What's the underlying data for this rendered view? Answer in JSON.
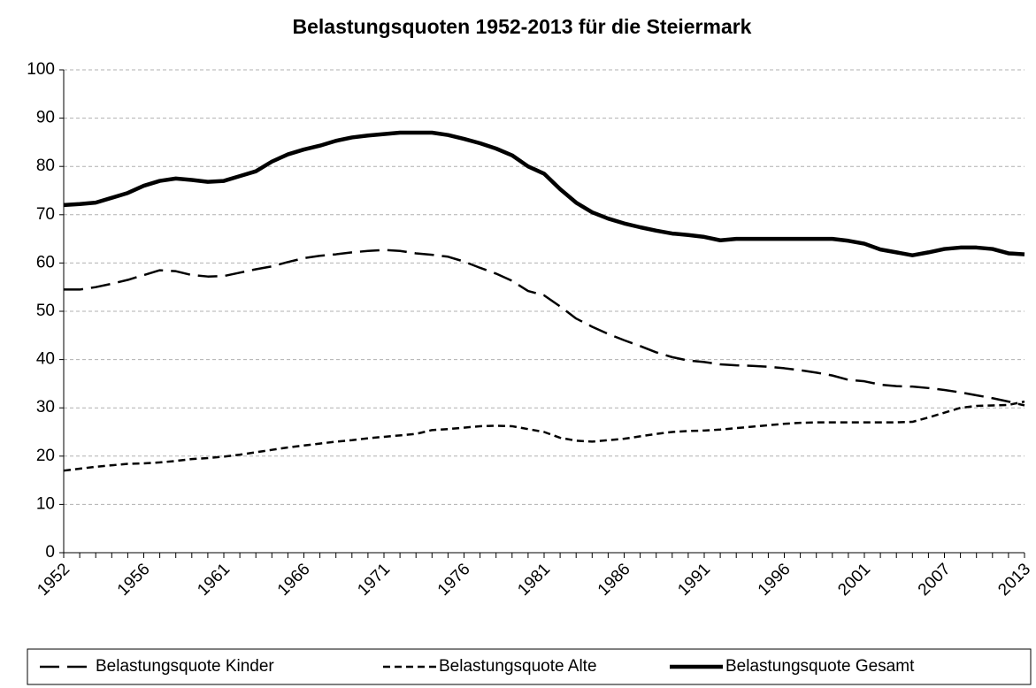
{
  "chart_data": {
    "type": "line",
    "title": "Belastungsquoten 1952-2013 für die Steiermark",
    "categories": [
      "1952",
      null,
      null,
      null,
      null,
      "1956",
      null,
      null,
      null,
      null,
      "1961",
      null,
      null,
      null,
      null,
      "1966",
      null,
      null,
      null,
      null,
      "1971",
      null,
      null,
      null,
      null,
      "1976",
      null,
      null,
      null,
      null,
      "1981",
      null,
      null,
      null,
      null,
      "1986",
      null,
      null,
      null,
      null,
      "1991",
      null,
      null,
      null,
      null,
      "1996",
      null,
      null,
      null,
      null,
      "2001",
      null,
      null,
      null,
      null,
      "2007",
      null,
      null,
      null,
      null,
      "2013"
    ],
    "series": [
      {
        "name": "Belastungsquote Kinder",
        "color": "#000000",
        "line_style": "long-dash",
        "values": [
          54.5,
          54.5,
          55,
          55.7,
          56.5,
          57.5,
          58.5,
          58.3,
          57.5,
          57.2,
          57.3,
          58,
          58.7,
          59.3,
          60.2,
          61,
          61.5,
          61.8,
          62.2,
          62.5,
          62.7,
          62.5,
          62,
          61.7,
          61.3,
          60.3,
          59,
          57.8,
          56.3,
          54.2,
          53.3,
          51,
          48.5,
          46.8,
          45.3,
          44,
          42.8,
          41.5,
          40.5,
          39.8,
          39.5,
          39,
          38.8,
          38.7,
          38.5,
          38.2,
          37.8,
          37.3,
          36.7,
          35.8,
          35.5,
          34.8,
          34.5,
          34.4,
          34.1,
          33.7,
          33.2,
          32.6,
          32,
          31.3,
          30.5
        ]
      },
      {
        "name": "Belastungsquote Alte",
        "color": "#000000",
        "line_style": "short-dash",
        "values": [
          17,
          17.4,
          17.8,
          18.1,
          18.4,
          18.5,
          18.7,
          19,
          19.4,
          19.6,
          19.9,
          20.3,
          20.8,
          21.3,
          21.8,
          22.2,
          22.6,
          23,
          23.3,
          23.7,
          24,
          24.3,
          24.6,
          25.4,
          25.6,
          25.9,
          26.2,
          26.3,
          26.2,
          25.6,
          25,
          23.8,
          23.2,
          23,
          23.3,
          23.6,
          24.1,
          24.6,
          25,
          25.2,
          25.3,
          25.5,
          25.8,
          26.1,
          26.4,
          26.7,
          26.9,
          27,
          27,
          27,
          27,
          27,
          27,
          27.1,
          28,
          29,
          30,
          30.4,
          30.5,
          30.6,
          31.3
        ]
      },
      {
        "name": "Belastungsquote Gesamt",
        "color": "#000000",
        "line_style": "solid",
        "values": [
          72,
          72.2,
          72.5,
          73.5,
          74.5,
          76,
          77,
          77.5,
          77.2,
          76.8,
          77,
          78,
          79,
          81,
          82.5,
          83.5,
          84.3,
          85.3,
          86,
          86.4,
          86.7,
          87,
          87,
          87,
          86.5,
          85.7,
          84.8,
          83.7,
          82.3,
          80,
          78.5,
          75.3,
          72.5,
          70.5,
          69.2,
          68.2,
          67.4,
          66.7,
          66.1,
          65.8,
          65.4,
          64.7,
          65,
          65,
          65,
          65,
          65,
          65,
          65,
          64.6,
          64,
          62.8,
          62.2,
          61.6,
          62.2,
          62.9,
          63.2,
          63.2,
          62.9,
          62,
          61.8
        ]
      }
    ],
    "ylim": [
      0,
      100
    ],
    "yticks": [
      0,
      10,
      20,
      30,
      40,
      50,
      60,
      70,
      80,
      90,
      100
    ],
    "grid": true,
    "legend": "bottom"
  }
}
